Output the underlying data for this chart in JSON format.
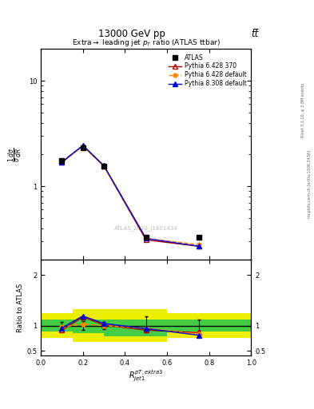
{
  "title_main": "13000 GeV pp",
  "title_right": "tt̅",
  "plot_title": "Extra→ leading jet p_T ratio (ATLAS ttbar)",
  "watermark": "ATLAS_2020_I1801434",
  "ylabel_ratio": "Ratio to ATLAS",
  "xlabel": "$R_{jet1}^{pT,extra3}$",
  "right_label_top": "Rivet 3.1.10, ≥ 2.8M events",
  "right_label_bot": "mcplots.cern.ch [arXiv:1306.3436]",
  "x_data": [
    0.1,
    0.2,
    0.3,
    0.5,
    0.75
  ],
  "atlas_y": [
    1.75,
    2.3,
    1.55,
    0.33,
    0.33
  ],
  "p6_370_y": [
    1.68,
    2.42,
    1.55,
    0.31,
    0.27
  ],
  "p6_def_y": [
    1.72,
    2.38,
    1.55,
    0.32,
    0.28
  ],
  "p8_def_y": [
    1.7,
    2.44,
    1.57,
    0.32,
    0.27
  ],
  "ratio_p6_370": [
    0.91,
    1.17,
    1.01,
    0.91,
    0.86
  ],
  "ratio_p6_def": [
    0.97,
    1.03,
    1.0,
    0.95,
    0.83
  ],
  "ratio_p8_def": [
    0.95,
    1.19,
    1.04,
    0.94,
    0.81
  ],
  "err_lo": [
    0.07,
    0.09,
    0.07,
    0.13,
    0.1
  ],
  "err_hi": [
    0.07,
    0.09,
    0.07,
    0.18,
    0.12
  ],
  "band_edges": [
    0.0,
    0.15,
    0.3,
    0.6,
    1.0
  ],
  "yellow_lo": [
    0.75,
    0.68,
    0.68,
    0.75,
    0.75
  ],
  "yellow_hi": [
    1.25,
    1.32,
    1.32,
    1.25,
    1.25
  ],
  "green_lo": [
    0.88,
    0.85,
    0.78,
    0.88,
    0.88
  ],
  "green_hi": [
    1.12,
    1.12,
    1.12,
    1.12,
    1.12
  ],
  "color_atlas": "#000000",
  "color_p6_370": "#aa0000",
  "color_p6_def": "#ff8800",
  "color_p8_def": "#0000cc",
  "color_green": "#44cc44",
  "color_yellow": "#eeee00",
  "ylim_main": [
    0.2,
    20.0
  ],
  "ylim_ratio": [
    0.4,
    2.3
  ],
  "xlim": [
    0.0,
    1.0
  ]
}
